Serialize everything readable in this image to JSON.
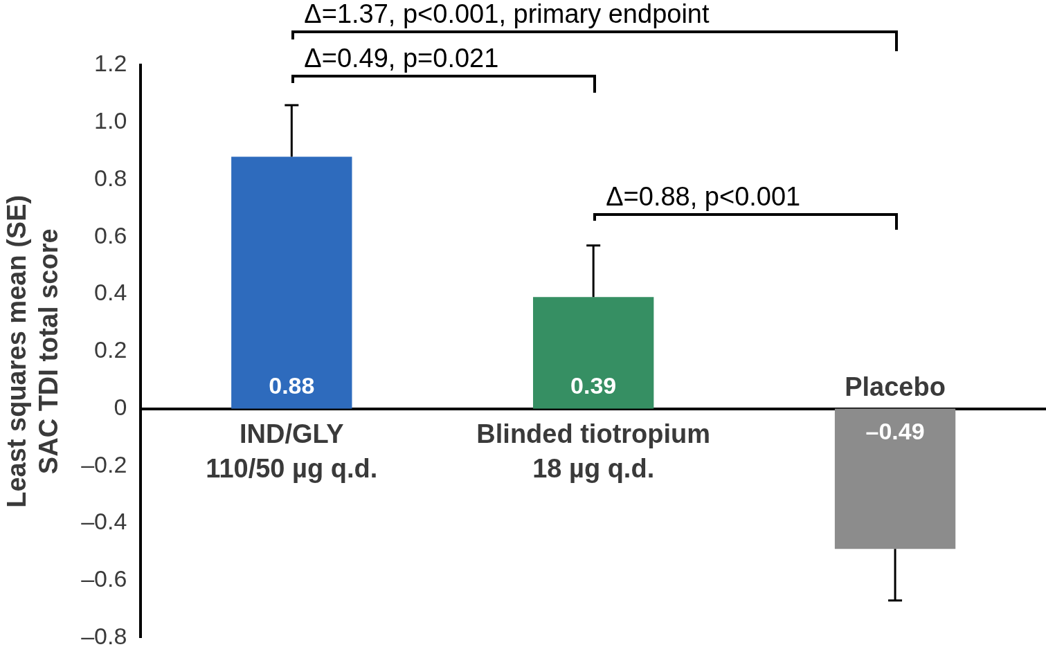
{
  "chart_data": {
    "type": "bar",
    "ylabel": "Least squares mean (SE)\nSAC TDI total score",
    "categories": [
      "IND/GLY\n110/50 µg q.d.",
      "Blinded tiotropium\n18 µg q.d.",
      "Placebo"
    ],
    "values": [
      0.88,
      0.39,
      -0.49
    ],
    "colors": [
      "#2e6bbd",
      "#368f63",
      "#8c8c8c"
    ],
    "value_labels": [
      "0.88",
      "0.39",
      "–0.49"
    ],
    "errors": [
      [
        0.88,
        1.06
      ],
      [
        0.39,
        0.57
      ],
      [
        -0.67,
        -0.49
      ]
    ],
    "ylim": [
      -0.8,
      1.2
    ],
    "yticks": [
      {
        "value": -0.8,
        "label": "–0.8"
      },
      {
        "value": -0.6,
        "label": "–0.6"
      },
      {
        "value": -0.4,
        "label": "–0.4"
      },
      {
        "value": -0.2,
        "label": "–0.2"
      },
      0,
      0.2,
      0.4,
      0.6,
      0.8,
      {
        "value": 1.0,
        "label": "1.0"
      },
      1.2
    ],
    "annotations": [
      "Δ=1.37, p<0.001, primary endpoint",
      "Δ=0.49, p=0.021",
      "Δ=0.88, p<0.001"
    ],
    "grid": false,
    "legend": false
  }
}
